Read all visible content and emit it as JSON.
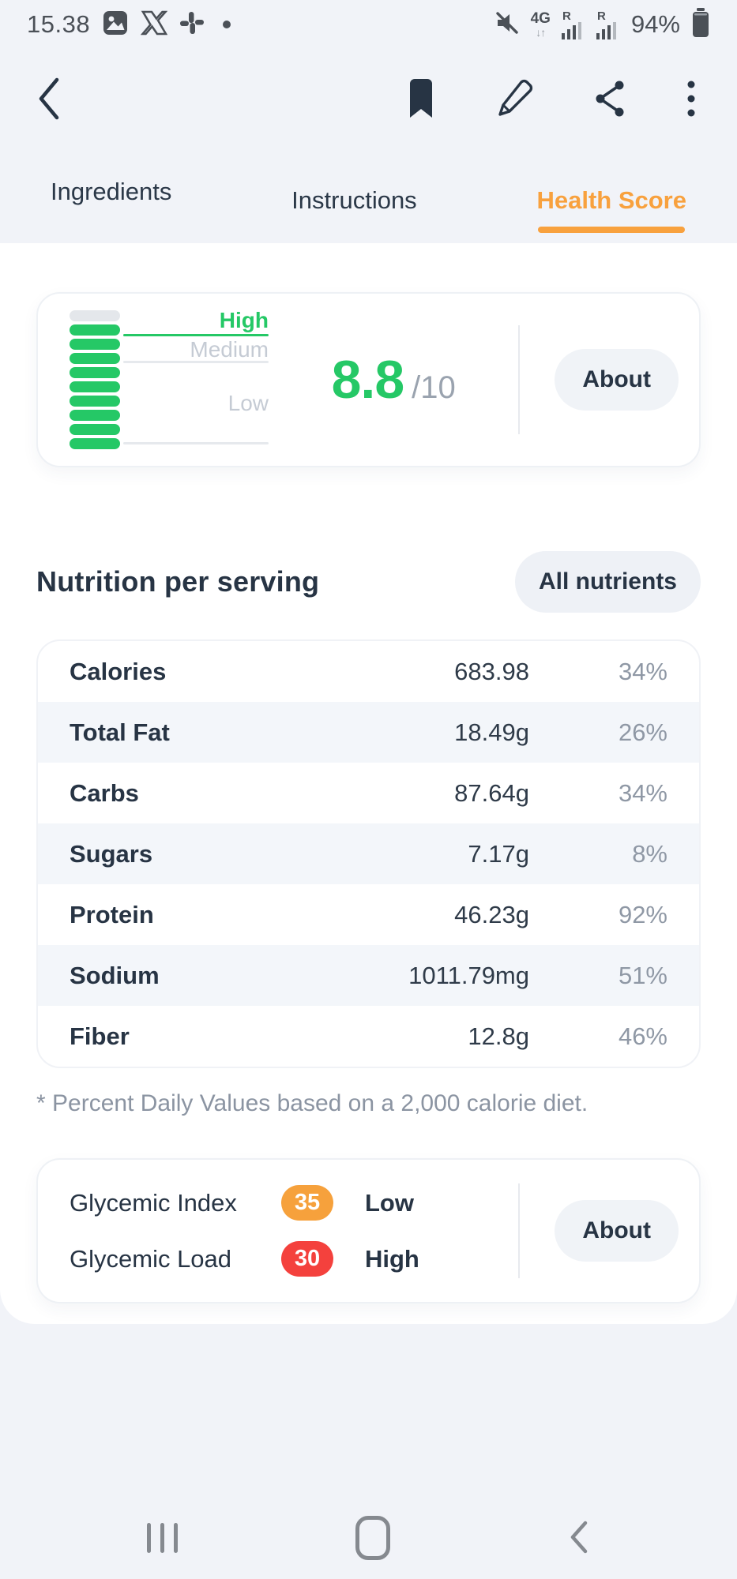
{
  "status_bar": {
    "time": "15.38",
    "network_type": "4G",
    "carrier_labels": [
      "R",
      "R"
    ],
    "battery_percent": "94%"
  },
  "tabs": [
    {
      "label": "Ingredients",
      "active": false
    },
    {
      "label": "Instructions",
      "active": false
    },
    {
      "label": "Health Score",
      "active": true
    }
  ],
  "health_score": {
    "score": "8.8",
    "denominator": "/10",
    "about_label": "About",
    "gauge": {
      "segments_total": 10,
      "segments_filled": 9,
      "labels": {
        "high": "High",
        "medium": "Medium",
        "low": "Low"
      }
    }
  },
  "nutrition": {
    "title": "Nutrition per serving",
    "filter_label": "All nutrients",
    "rows": [
      {
        "label": "Calories",
        "value": "683.98",
        "daily_value": "34%"
      },
      {
        "label": "Total Fat",
        "value": "18.49g",
        "daily_value": "26%"
      },
      {
        "label": "Carbs",
        "value": "87.64g",
        "daily_value": "34%"
      },
      {
        "label": "Sugars",
        "value": "7.17g",
        "daily_value": "8%"
      },
      {
        "label": "Protein",
        "value": "46.23g",
        "daily_value": "92%"
      },
      {
        "label": "Sodium",
        "value": "1011.79mg",
        "daily_value": "51%"
      },
      {
        "label": "Fiber",
        "value": "12.8g",
        "daily_value": "46%"
      }
    ],
    "footnote": "* Percent Daily Values based on a 2,000 calorie diet."
  },
  "glycemic": {
    "rows": [
      {
        "label": "Glycemic Index",
        "value": "35",
        "level": "Low",
        "badge_color": "#f6a13c"
      },
      {
        "label": "Glycemic Load",
        "value": "30",
        "level": "High",
        "badge_color": "#f4413d"
      }
    ],
    "about_label": "About"
  },
  "colors": {
    "accent_green": "#25c866",
    "accent_orange": "#f8a13e",
    "accent_red": "#f4413d",
    "text_dark": "#273444",
    "text_gray": "#8f98a5",
    "page_bg": "#f1f3f8",
    "row_tint": "#f3f6fa"
  }
}
